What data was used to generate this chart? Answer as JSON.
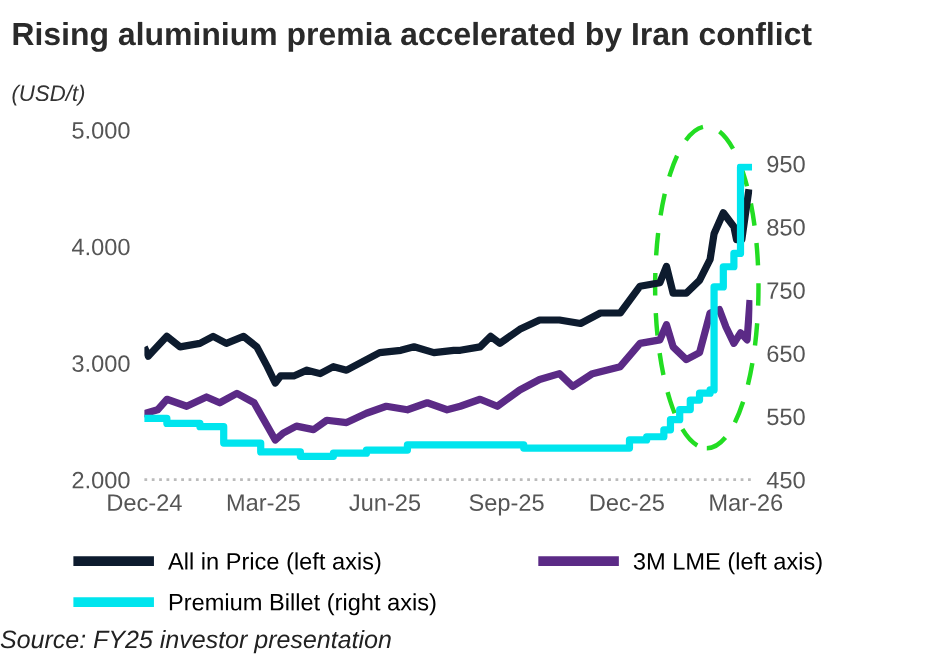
{
  "chart_data": {
    "type": "line",
    "title": "Rising aluminium premia accelerated by Iran conflict",
    "ylabel": "(USD/t)",
    "annotations": [
      "Source: FY25 investor presentation"
    ],
    "xlim": [
      "2024-12-01",
      "2026-03-06"
    ],
    "xticks": [
      {
        "value": "2024-12-01",
        "label": "Dec-24"
      },
      {
        "value": "2025-03-01",
        "label": "Mar-25"
      },
      {
        "value": "2025-06-01",
        "label": "Jun-25"
      },
      {
        "value": "2025-09-01",
        "label": "Sep-25"
      },
      {
        "value": "2025-12-01",
        "label": "Dec-25"
      },
      {
        "value": "2026-03-01",
        "label": "Mar-26"
      }
    ],
    "ylim": [
      2000,
      5000
    ],
    "yticks": [
      {
        "value": 2000,
        "label": "2.000"
      },
      {
        "value": 3000,
        "label": "3.000"
      },
      {
        "value": 4000,
        "label": "4.000"
      },
      {
        "value": 5000,
        "label": "5.000"
      }
    ],
    "y2lim": [
      450,
      950
    ],
    "y2ticks": [
      450,
      550,
      650,
      750,
      850,
      950
    ],
    "grid": false,
    "legend": "bottom",
    "line_style": "solid",
    "marker": "none",
    "series": [
      {
        "name": "All in Price (left axis)",
        "color": "#0d1b2e",
        "x": [
          "2024-12-02",
          "2024-12-04",
          "2024-12-08",
          "2024-12-18",
          "2024-12-28",
          "2025-01-12",
          "2025-01-22",
          "2025-02-01",
          "2025-02-14",
          "2025-02-24",
          "2025-03-04",
          "2025-03-10",
          "2025-03-14",
          "2025-03-24",
          "2025-04-03",
          "2025-04-13",
          "2025-04-23",
          "2025-05-03",
          "2025-05-13",
          "2025-05-28",
          "2025-06-13",
          "2025-06-23",
          "2025-07-08",
          "2025-07-23",
          "2025-07-28",
          "2025-08-12",
          "2025-08-20",
          "2025-08-27",
          "2025-09-11",
          "2025-09-26",
          "2025-10-11",
          "2025-10-27",
          "2025-11-11",
          "2025-11-26",
          "2025-12-11",
          "2025-12-26",
          "2025-12-31",
          "2026-01-05",
          "2026-01-15",
          "2026-01-25",
          "2026-02-02",
          "2026-02-05",
          "2026-02-12",
          "2026-02-20",
          "2026-02-22",
          "2026-02-26",
          "2026-03-03"
        ],
        "values": [
          3110,
          3060,
          3110,
          3230,
          3140,
          3170,
          3230,
          3170,
          3230,
          3140,
          2970,
          2830,
          2890,
          2890,
          2940,
          2910,
          2970,
          2940,
          3000,
          3090,
          3110,
          3140,
          3090,
          3110,
          3110,
          3140,
          3230,
          3170,
          3290,
          3370,
          3370,
          3340,
          3430,
          3430,
          3660,
          3690,
          3830,
          3600,
          3600,
          3710,
          3890,
          4110,
          4290,
          4170,
          4060,
          4060,
          4460
        ]
      },
      {
        "name": "3M LME (left axis)",
        "color": "#5b2a86",
        "x": [
          "2024-12-02",
          "2024-12-11",
          "2024-12-18",
          "2025-01-02",
          "2025-01-17",
          "2025-01-27",
          "2025-02-09",
          "2025-02-22",
          "2025-03-04",
          "2025-03-10",
          "2025-03-16",
          "2025-03-26",
          "2025-04-08",
          "2025-04-18",
          "2025-05-03",
          "2025-05-18",
          "2025-06-02",
          "2025-06-18",
          "2025-07-03",
          "2025-07-18",
          "2025-07-28",
          "2025-08-12",
          "2025-08-25",
          "2025-09-11",
          "2025-09-26",
          "2025-10-11",
          "2025-10-21",
          "2025-11-05",
          "2025-11-26",
          "2025-12-11",
          "2025-12-26",
          "2025-12-31",
          "2026-01-05",
          "2026-01-15",
          "2026-01-25",
          "2026-02-02",
          "2026-02-09",
          "2026-02-14",
          "2026-02-20",
          "2026-02-25",
          "2026-03-02",
          "2026-03-04"
        ],
        "values": [
          2570,
          2600,
          2690,
          2630,
          2710,
          2660,
          2740,
          2660,
          2460,
          2340,
          2400,
          2460,
          2430,
          2510,
          2490,
          2570,
          2630,
          2600,
          2660,
          2600,
          2630,
          2690,
          2630,
          2770,
          2860,
          2910,
          2800,
          2910,
          2970,
          3170,
          3200,
          3330,
          3140,
          3030,
          3090,
          3430,
          3460,
          3310,
          3170,
          3260,
          3200,
          3510
        ]
      },
      {
        "name": "Premium Billet (right axis)",
        "color": "#00e5ee",
        "type": "step",
        "axis": "y2",
        "x": [
          "2024-12-01",
          "2024-12-18",
          "2025-01-12",
          "2025-01-30",
          "2025-02-27",
          "2025-03-29",
          "2025-04-23",
          "2025-05-18",
          "2025-06-18",
          "2025-09-14",
          "2025-12-03",
          "2025-12-16",
          "2025-12-29",
          "2026-01-03",
          "2026-01-10",
          "2026-01-18",
          "2026-01-25",
          "2026-02-02",
          "2026-02-05",
          "2026-02-12",
          "2026-02-20",
          "2026-02-25",
          "2026-03-03"
        ],
        "values": [
          547,
          539,
          534,
          508,
          494,
          487,
          492,
          497,
          505,
          500,
          513,
          518,
          529,
          545,
          561,
          576,
          587,
          592,
          755,
          787,
          808,
          945,
          945
        ]
      }
    ]
  }
}
